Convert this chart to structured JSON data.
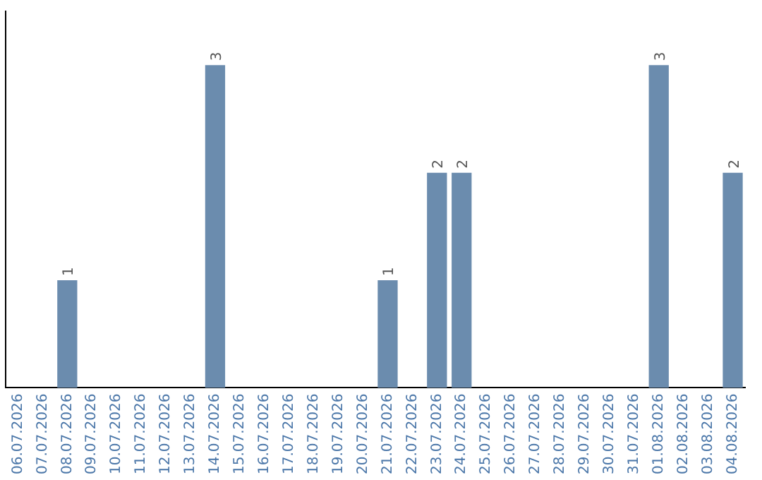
{
  "chart_data": {
    "type": "bar",
    "categories": [
      "06.07.2026",
      "07.07.2026",
      "08.07.2026",
      "09.07.2026",
      "10.07.2026",
      "11.07.2026",
      "12.07.2026",
      "13.07.2026",
      "14.07.2026",
      "15.07.2026",
      "16.07.2026",
      "17.07.2026",
      "18.07.2026",
      "19.07.2026",
      "20.07.2026",
      "21.07.2026",
      "22.07.2026",
      "23.07.2026",
      "24.07.2026",
      "25.07.2026",
      "26.07.2026",
      "27.07.2026",
      "28.07.2026",
      "29.07.2026",
      "30.07.2026",
      "31.07.2026",
      "01.08.2026",
      "02.08.2026",
      "03.08.2026",
      "04.08.2026"
    ],
    "values": [
      0,
      0,
      1,
      0,
      0,
      0,
      0,
      0,
      3,
      0,
      0,
      0,
      0,
      0,
      0,
      1,
      0,
      2,
      2,
      0,
      0,
      0,
      0,
      0,
      0,
      0,
      3,
      0,
      0,
      2
    ],
    "value_labels": [
      null,
      null,
      "1",
      null,
      null,
      null,
      null,
      null,
      "3",
      null,
      null,
      null,
      null,
      null,
      null,
      "1",
      null,
      "2",
      "2",
      null,
      null,
      null,
      null,
      null,
      null,
      null,
      "3",
      null,
      null,
      "2"
    ],
    "color": "#6b8cae",
    "grid": false,
    "legend": false,
    "tick_labels": "x"
  }
}
